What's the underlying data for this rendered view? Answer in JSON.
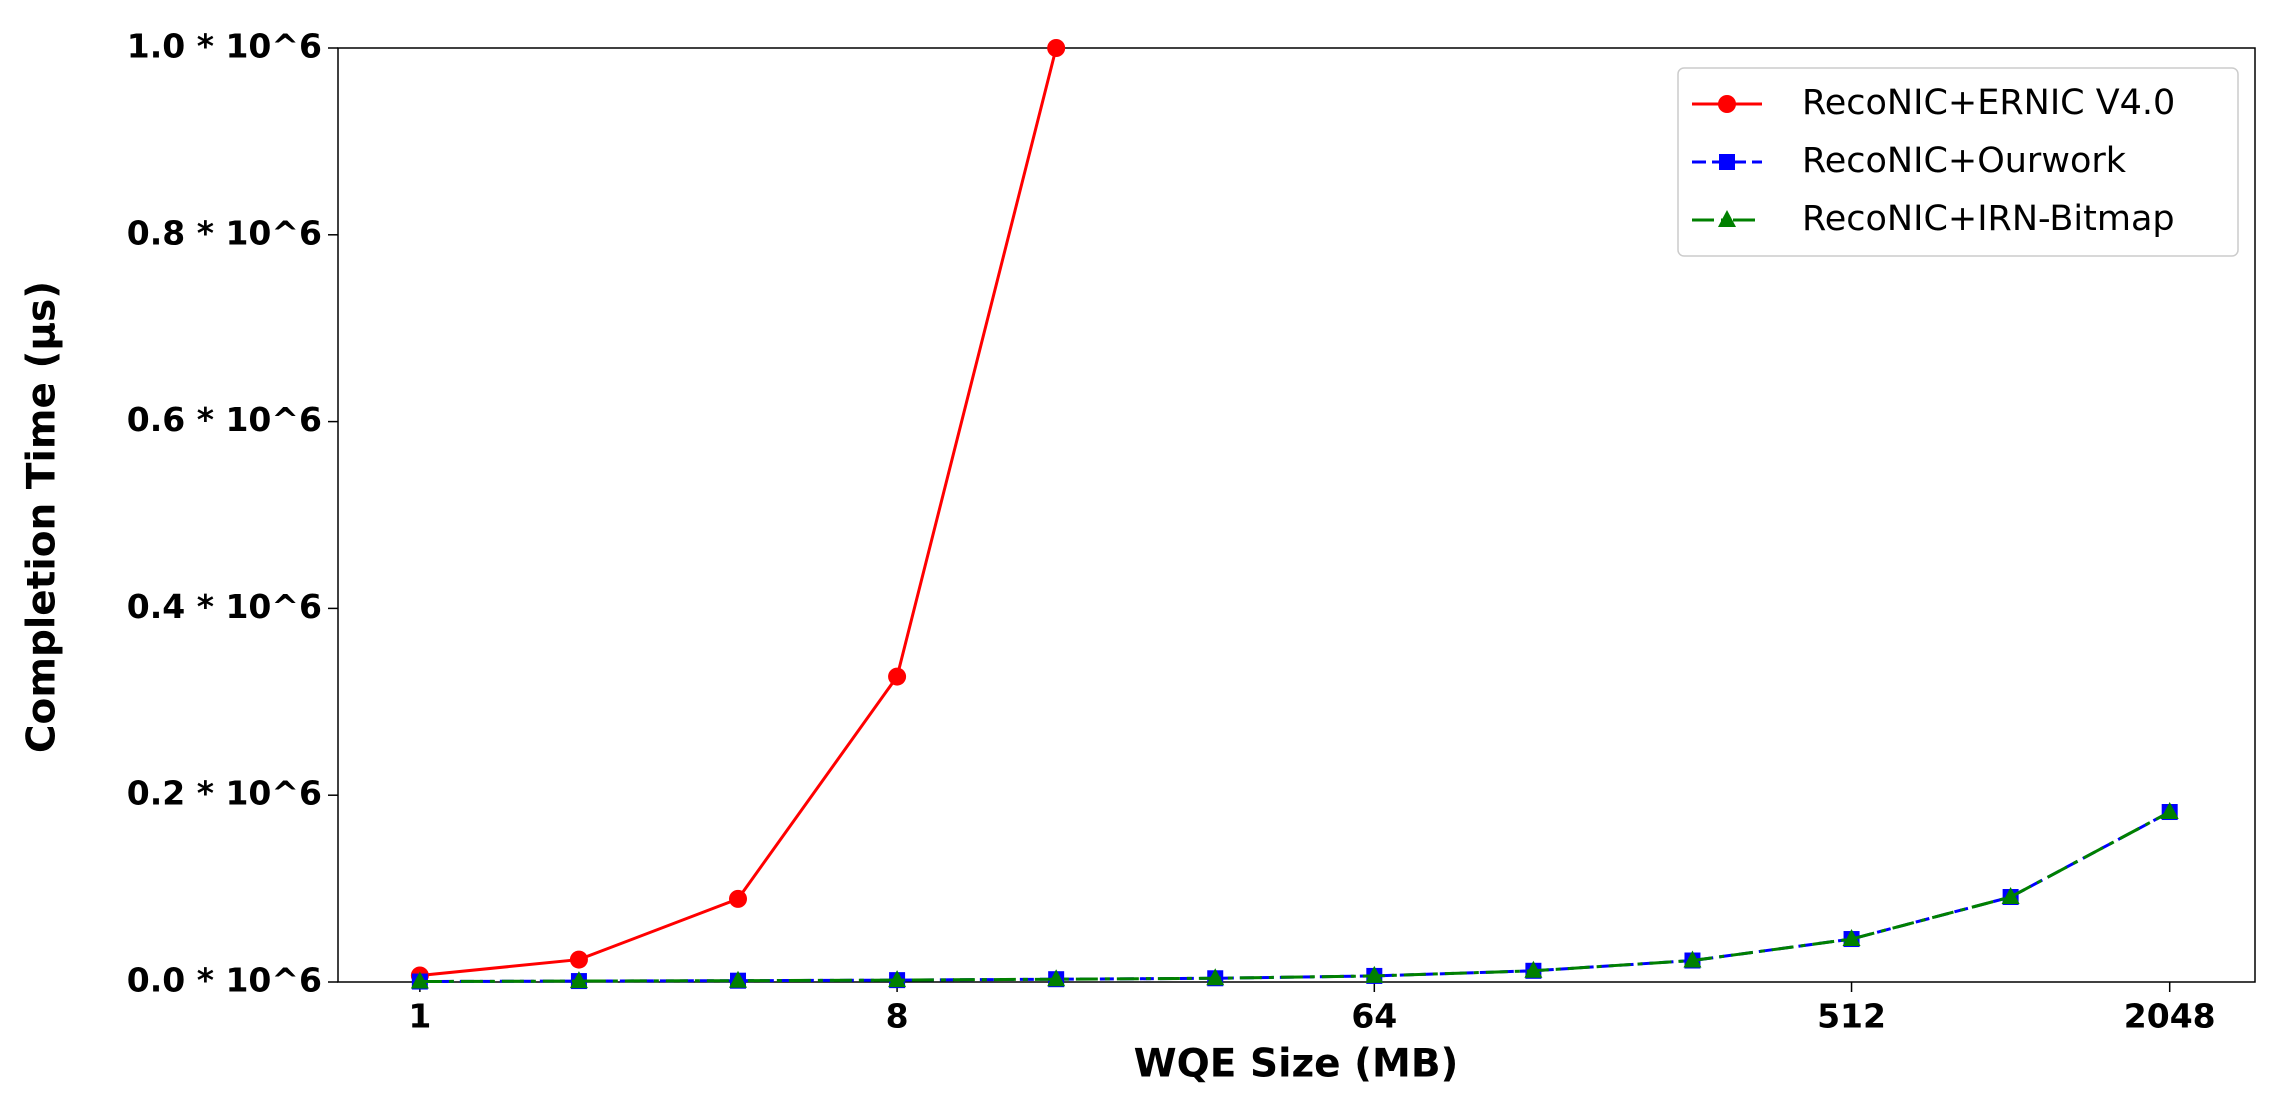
{
  "chart_data": {
    "type": "line",
    "x_label": "WQE Size (MB)",
    "y_label": "Completion Time (µs)",
    "x": [
      1,
      2,
      4,
      8,
      16,
      32,
      64,
      128,
      256,
      512,
      1024,
      2048
    ],
    "xscale": "log2",
    "xlim": [
      0.7,
      2970
    ],
    "xticks": [
      1,
      8,
      64,
      512,
      2048
    ],
    "ylim": [
      0,
      1000000
    ],
    "yticks": [
      {
        "value": 0,
        "label": "0.0 * 10^6"
      },
      {
        "value": 200000,
        "label": "0.2 * 10^6"
      },
      {
        "value": 400000,
        "label": "0.4 * 10^6"
      },
      {
        "value": 600000,
        "label": "0.6 * 10^6"
      },
      {
        "value": 800000,
        "label": "0.8 * 10^6"
      },
      {
        "value": 1000000,
        "label": "1.0 * 10^6"
      }
    ],
    "grid": false,
    "legend": "upper right",
    "series": [
      {
        "name": "RecoNIC+ERNIC V4.0",
        "color": "#ff0000",
        "linestyle": "solid",
        "marker": "circle",
        "values": [
          7000,
          24000,
          89000,
          327000,
          1000000,
          null,
          null,
          null,
          null,
          null,
          null,
          null
        ]
      },
      {
        "name": "RecoNIC+Ourwork",
        "color": "#0000ff",
        "linestyle": "dashed",
        "marker": "square",
        "values": [
          500,
          1000,
          1400,
          2000,
          3000,
          4000,
          6500,
          12000,
          23000,
          46000,
          91000,
          182000
        ]
      },
      {
        "name": "RecoNIC+IRN-Bitmap",
        "color": "#008000",
        "linestyle": "dashdot",
        "marker": "triangle",
        "values": [
          500,
          1000,
          1400,
          2000,
          3000,
          4000,
          6500,
          12000,
          23000,
          46000,
          91000,
          182000
        ]
      }
    ]
  }
}
